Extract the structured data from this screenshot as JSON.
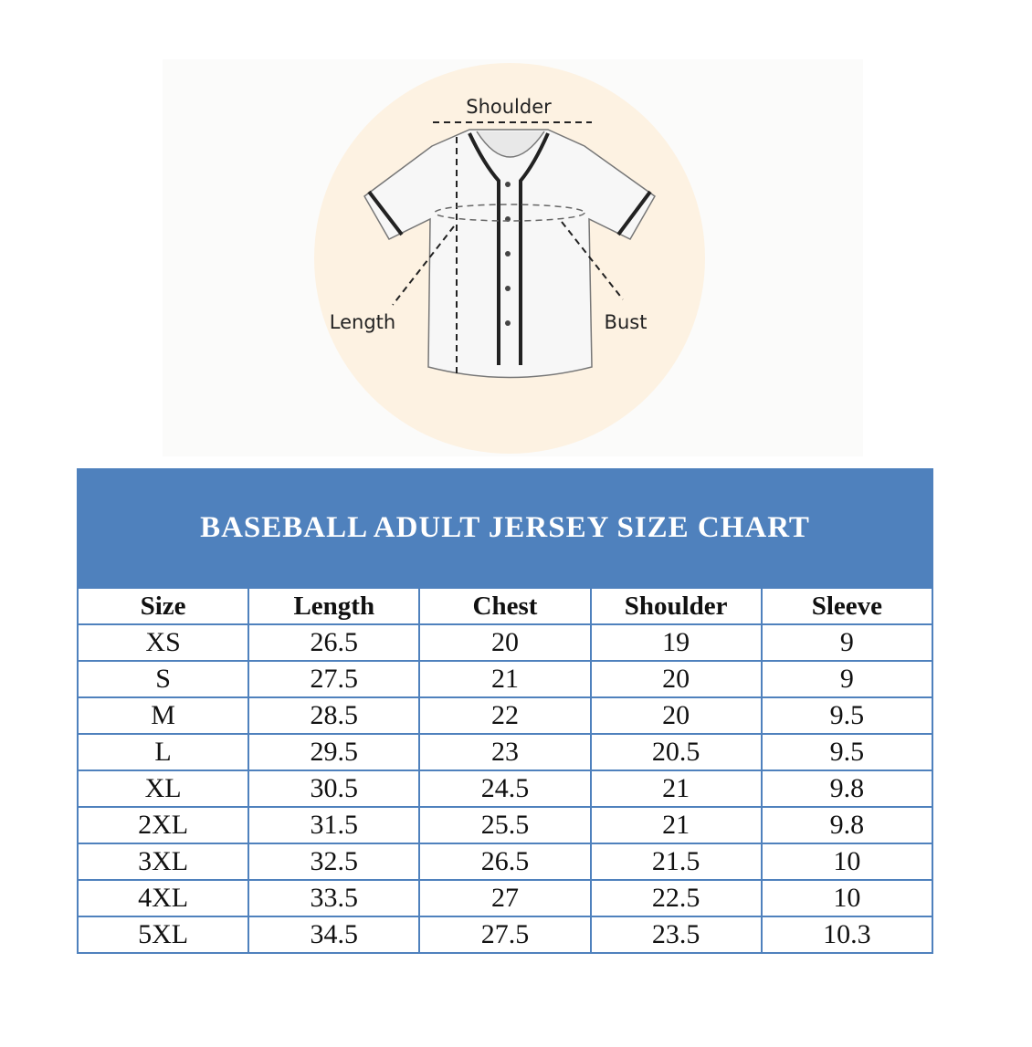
{
  "illustration": {
    "labels": {
      "shoulder": "Shoulder",
      "length": "Length",
      "bust": "Bust"
    }
  },
  "chart": {
    "title": "BASEBALL ADULT JERSEY SIZE CHART",
    "headers": [
      "Size",
      "Length",
      "Chest",
      "Shoulder",
      "Sleeve"
    ],
    "rows": [
      [
        "XS",
        "26.5",
        "20",
        "19",
        "9"
      ],
      [
        "S",
        "27.5",
        "21",
        "20",
        "9"
      ],
      [
        "M",
        "28.5",
        "22",
        "20",
        "9.5"
      ],
      [
        "L",
        "29.5",
        "23",
        "20.5",
        "9.5"
      ],
      [
        "XL",
        "30.5",
        "24.5",
        "21",
        "9.8"
      ],
      [
        "2XL",
        "31.5",
        "25.5",
        "21",
        "9.8"
      ],
      [
        "3XL",
        "32.5",
        "26.5",
        "21.5",
        "10"
      ],
      [
        "4XL",
        "33.5",
        "27",
        "22.5",
        "10"
      ],
      [
        "5XL",
        "34.5",
        "27.5",
        "23.5",
        "10.3"
      ]
    ],
    "colors": {
      "accent": "#4f81bd",
      "circle": "#fdf2e2"
    }
  }
}
